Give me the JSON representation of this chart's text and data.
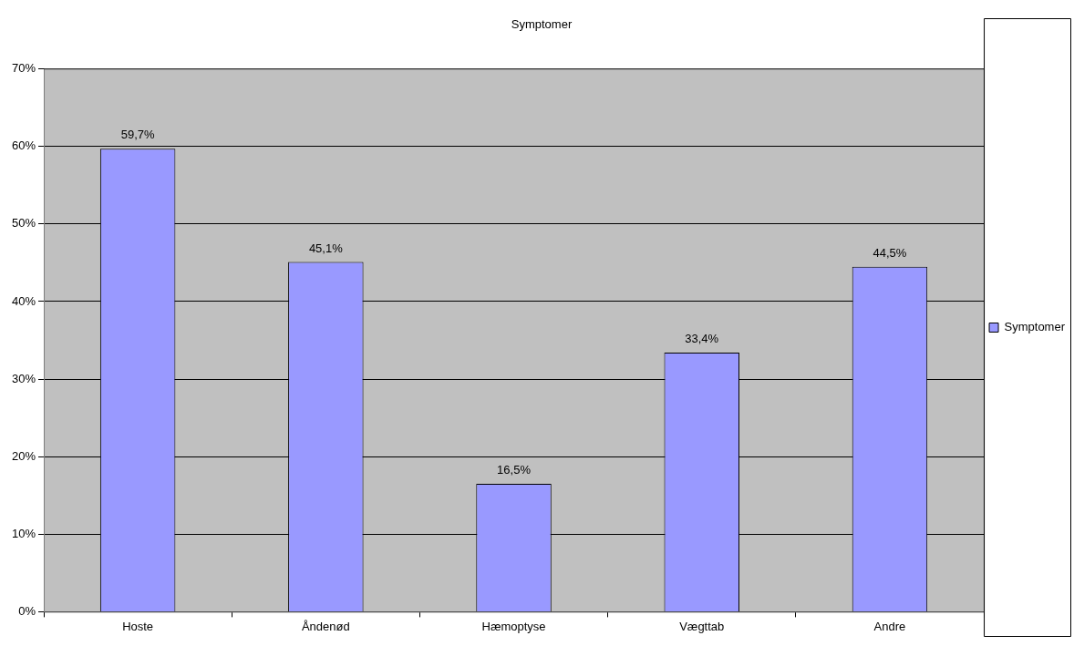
{
  "chart_data": {
    "type": "bar",
    "title": "Symptomer",
    "categories": [
      "Hoste",
      "Åndenød",
      "Hæmoptyse",
      "Vægttab",
      "Andre"
    ],
    "series": [
      {
        "name": "Symptomer",
        "color": "#9999ff",
        "values": [
          59.7,
          45.1,
          16.5,
          33.4,
          44.5
        ],
        "value_labels": [
          "59,7%",
          "45,1%",
          "16,5%",
          "33,4%",
          "44,5%"
        ]
      }
    ],
    "ylim": [
      0,
      70
    ],
    "yticks": [
      {
        "value": 0,
        "label": "0%"
      },
      {
        "value": 10,
        "label": "10%"
      },
      {
        "value": 20,
        "label": "20%"
      },
      {
        "value": 30,
        "label": "30%"
      },
      {
        "value": 40,
        "label": "40%"
      },
      {
        "value": 50,
        "label": "50%"
      },
      {
        "value": 60,
        "label": "60%"
      },
      {
        "value": 70,
        "label": "70%"
      }
    ],
    "grid": "y",
    "legend": "right"
  }
}
